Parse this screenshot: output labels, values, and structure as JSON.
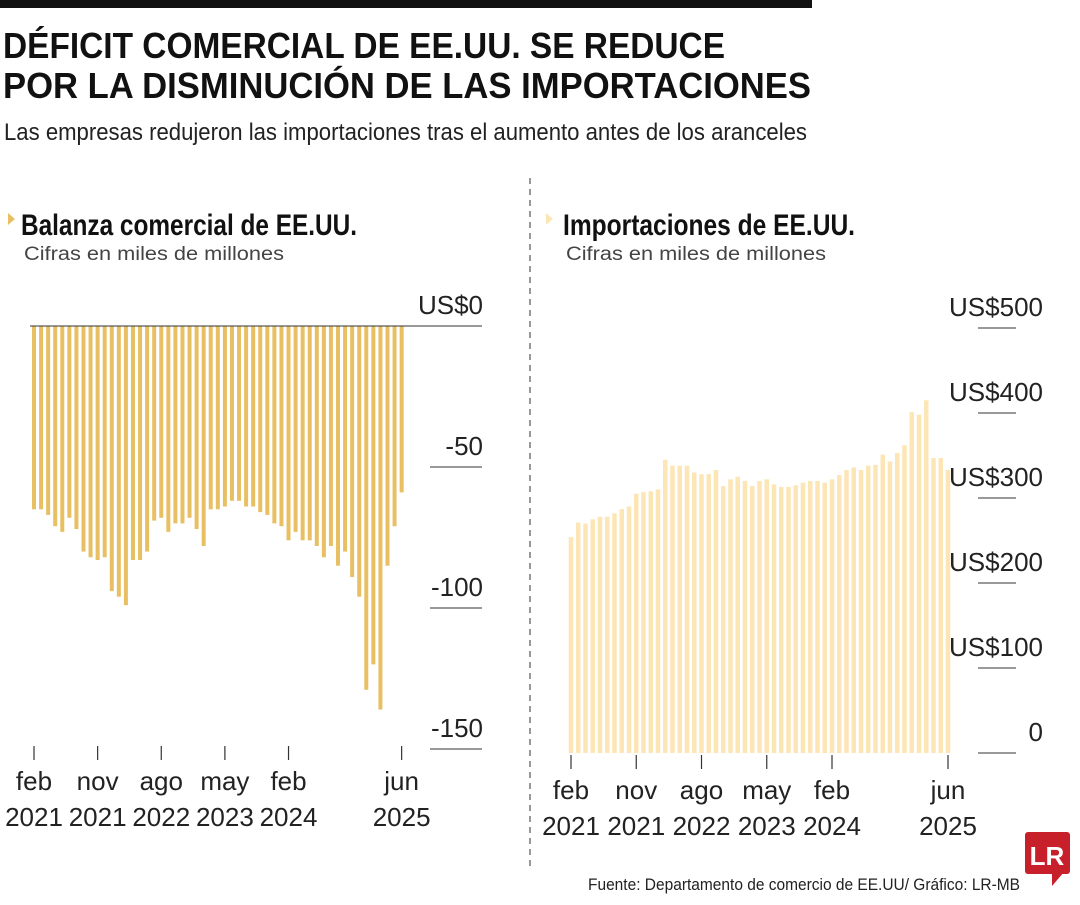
{
  "header": {
    "title_line1": "DÉFICIT COMERCIAL DE EE.UU. SE REDUCE",
    "title_line2": "POR LA DISMINUCIÓN DE LAS IMPORTACIONES",
    "subtitle": "Las empresas redujeron las importaciones tras el aumento antes de los aranceles"
  },
  "footer": {
    "source": "Fuente: Departamento de comercio de EE.UU/ Gráfico: LR-MB",
    "logo_text": "LR",
    "logo_color": "#c8202a"
  },
  "chart_data": [
    {
      "type": "bar",
      "title": "Balanza comercial de EE.UU.",
      "subtitle": "Cifras en miles de millones",
      "color": "#e8c063",
      "ylim": [
        -150,
        0
      ],
      "y_ticks": [
        0,
        -50,
        -100,
        -150
      ],
      "y_tick_labels": [
        "US$0",
        "-50",
        "-100",
        "-150"
      ],
      "x_start": "2021-02",
      "x_end": "2025-06",
      "x_ticks": [
        {
          "index": 0,
          "month": "feb",
          "year": "2021"
        },
        {
          "index": 9,
          "month": "nov",
          "year": "2021"
        },
        {
          "index": 18,
          "month": "ago",
          "year": "2022"
        },
        {
          "index": 27,
          "month": "may",
          "year": "2023"
        },
        {
          "index": 36,
          "month": "feb",
          "year": "2024"
        },
        {
          "index": 52,
          "month": "jun",
          "year": "2025"
        }
      ],
      "values": [
        -65,
        -65,
        -67,
        -71,
        -73,
        -68,
        -72,
        -80,
        -82,
        -83,
        -82,
        -94,
        -96,
        -99,
        -83,
        -83,
        -80,
        -69,
        -68,
        -73,
        -70,
        -70,
        -68,
        -72,
        -78,
        -65,
        -65,
        -64,
        -62,
        -62,
        -64,
        -64,
        -66,
        -67,
        -70,
        -71,
        -76,
        -73,
        -76,
        -76,
        -78,
        -82,
        -78,
        -85,
        -80,
        -89,
        -96,
        -129,
        -120,
        -136,
        -85,
        -71,
        -59
      ]
    },
    {
      "type": "bar",
      "title": "Importaciones de EE.UU.",
      "subtitle": "Cifras en miles de millones",
      "color": "#fde6b6",
      "ylim": [
        0,
        500
      ],
      "y_ticks": [
        0,
        100,
        200,
        300,
        400,
        500
      ],
      "y_tick_labels": [
        "0",
        "US$100",
        "US$200",
        "US$300",
        "US$400",
        "US$500"
      ],
      "x_start": "2021-02",
      "x_end": "2025-06",
      "x_ticks": [
        {
          "index": 0,
          "month": "feb",
          "year": "2021"
        },
        {
          "index": 9,
          "month": "nov",
          "year": "2021"
        },
        {
          "index": 18,
          "month": "ago",
          "year": "2022"
        },
        {
          "index": 27,
          "month": "may",
          "year": "2023"
        },
        {
          "index": 36,
          "month": "feb",
          "year": "2024"
        },
        {
          "index": 52,
          "month": "jun",
          "year": "2025"
        }
      ],
      "values": [
        254,
        271,
        270,
        275,
        278,
        278,
        282,
        287,
        290,
        305,
        307,
        308,
        310,
        345,
        338,
        338,
        338,
        330,
        328,
        328,
        333,
        314,
        322,
        325,
        320,
        314,
        320,
        322,
        316,
        313,
        313,
        315,
        318,
        320,
        320,
        318,
        322,
        327,
        333,
        336,
        333,
        338,
        339,
        351,
        343,
        353,
        362,
        401,
        398,
        415,
        347,
        347,
        333
      ]
    }
  ]
}
